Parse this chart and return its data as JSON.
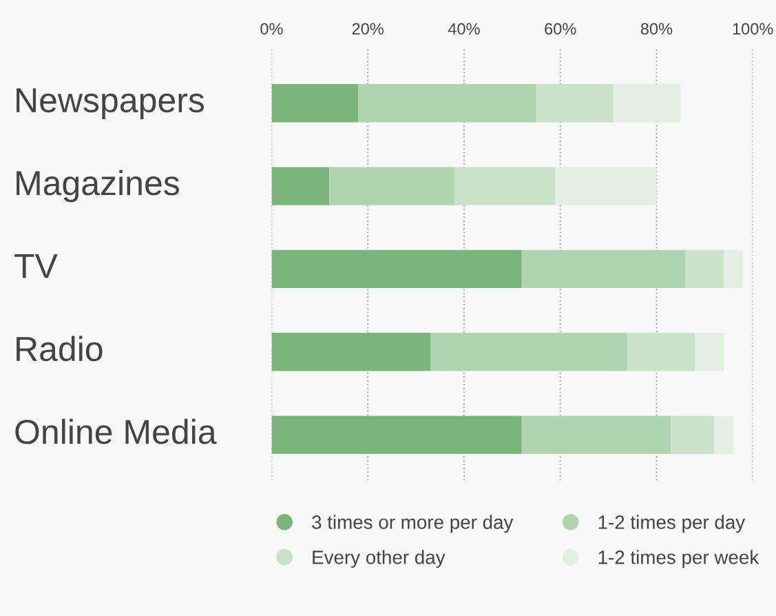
{
  "chart_data": {
    "type": "bar",
    "orientation": "horizontal",
    "stacked": true,
    "categories": [
      "Newspapers",
      "Magazines",
      "TV",
      "Radio",
      "Online Media"
    ],
    "series": [
      {
        "name": "3 times or more per day",
        "color": "#7bb57b",
        "values": [
          18,
          12,
          52,
          33,
          52
        ]
      },
      {
        "name": "1-2 times per day",
        "color": "#afd4af",
        "values": [
          37,
          26,
          34,
          41,
          31
        ]
      },
      {
        "name": "Every other day",
        "color": "#c9e2c9",
        "values": [
          16,
          21,
          8,
          14,
          9
        ]
      },
      {
        "name": "1-2 times per week",
        "color": "#e3efe3",
        "values": [
          14,
          21,
          4,
          6,
          4
        ]
      }
    ],
    "xlim": [
      0,
      100
    ],
    "xticks": [
      {
        "value": 0,
        "label": "0%"
      },
      {
        "value": 20,
        "label": "20%"
      },
      {
        "value": 40,
        "label": "40%"
      },
      {
        "value": 60,
        "label": "60%"
      },
      {
        "value": 80,
        "label": "80%"
      },
      {
        "value": 100,
        "label": "100%"
      }
    ],
    "grid": "x",
    "legend": "bottom",
    "marker": "circle"
  }
}
